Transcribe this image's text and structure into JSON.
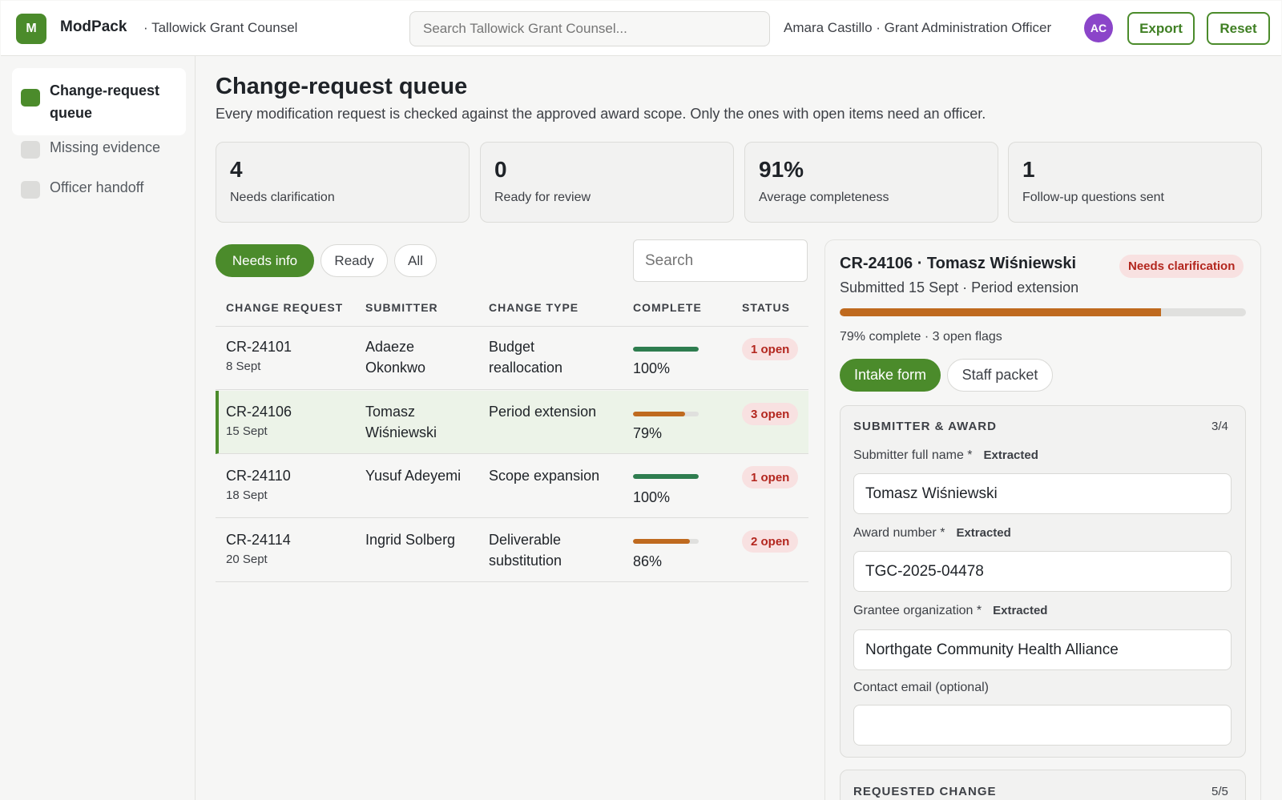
{
  "app": {
    "logo_letter": "M",
    "name": "ModPack",
    "org": "· Tallowick Grant Counsel",
    "search_placeholder": "Search Tallowick Grant Counsel...",
    "user": "Amara Castillo · Grant Administration Officer",
    "avatar_initials": "AC",
    "export_label": "Export",
    "reset_label": "Reset"
  },
  "sidebar": {
    "items": [
      {
        "label": "Change-request queue",
        "active": true
      },
      {
        "label": "Missing evidence",
        "active": false
      },
      {
        "label": "Officer handoff",
        "active": false
      }
    ]
  },
  "page": {
    "title": "Change-request queue",
    "subtitle": "Every modification request is checked against the approved award scope. Only the ones with open items need an officer."
  },
  "stats": [
    {
      "value": "4",
      "label": "Needs clarification"
    },
    {
      "value": "0",
      "label": "Ready for review"
    },
    {
      "value": "91%",
      "label": "Average completeness"
    },
    {
      "value": "1",
      "label": "Follow-up questions sent"
    }
  ],
  "filters": [
    "Needs info",
    "Ready",
    "All"
  ],
  "list_search_placeholder": "Search",
  "table": {
    "headers": [
      "CHANGE REQUEST",
      "SUBMITTER",
      "CHANGE TYPE",
      "COMPLETE",
      "STATUS"
    ],
    "rows": [
      {
        "id": "CR-24101",
        "date": "8 Sept",
        "submitter_1": "Adaeze",
        "submitter_2": "Okonkwo",
        "type_1": "Budget",
        "type_2": "reallocation",
        "complete": "100%",
        "complete_frac": 1.0,
        "status": "1 open"
      },
      {
        "id": "CR-24106",
        "date": "15 Sept",
        "submitter_1": "Tomasz",
        "submitter_2": "Wiśniewski",
        "type_1": "Period extension",
        "type_2": "",
        "complete": "79%",
        "complete_frac": 0.79,
        "status": "3 open"
      },
      {
        "id": "CR-24110",
        "date": "18 Sept",
        "submitter_1": "Yusuf Adeyemi",
        "submitter_2": "",
        "type_1": "Scope expansion",
        "type_2": "",
        "complete": "100%",
        "complete_frac": 1.0,
        "status": "1 open"
      },
      {
        "id": "CR-24114",
        "date": "20 Sept",
        "submitter_1": "Ingrid Solberg",
        "submitter_2": "",
        "type_1": "Deliverable",
        "type_2": "substitution",
        "complete": "86%",
        "complete_frac": 0.86,
        "status": "2 open"
      }
    ]
  },
  "detail": {
    "title": "CR-24106 · Tomasz Wiśniewski",
    "badge": "Needs clarification",
    "subtitle": "Submitted 15 Sept · Period extension",
    "progress_frac": 0.79,
    "stat_line": "79% complete · 3 open flags",
    "tabs": [
      "Intake form",
      "Staff packet"
    ],
    "section1": {
      "title": "SUBMITTER & AWARD",
      "count": "3/4",
      "fields": [
        {
          "label": "Submitter full name *",
          "tag": "Extracted",
          "value": "Tomasz Wiśniewski"
        },
        {
          "label": "Award number *",
          "tag": "Extracted",
          "value": "TGC-2025-04478"
        },
        {
          "label": "Grantee organization *",
          "tag": "Extracted",
          "value": "Northgate Community Health Alliance"
        },
        {
          "label": "Contact email (optional)",
          "tag": "",
          "value": ""
        }
      ]
    },
    "section2": {
      "title": "REQUESTED CHANGE",
      "count": "5/5"
    }
  },
  "colors": {
    "accent": "#4b8b2b",
    "bar_full": "#2e7d4f",
    "bar_partial": "#bf6a1f",
    "danger": "#b3261e"
  }
}
